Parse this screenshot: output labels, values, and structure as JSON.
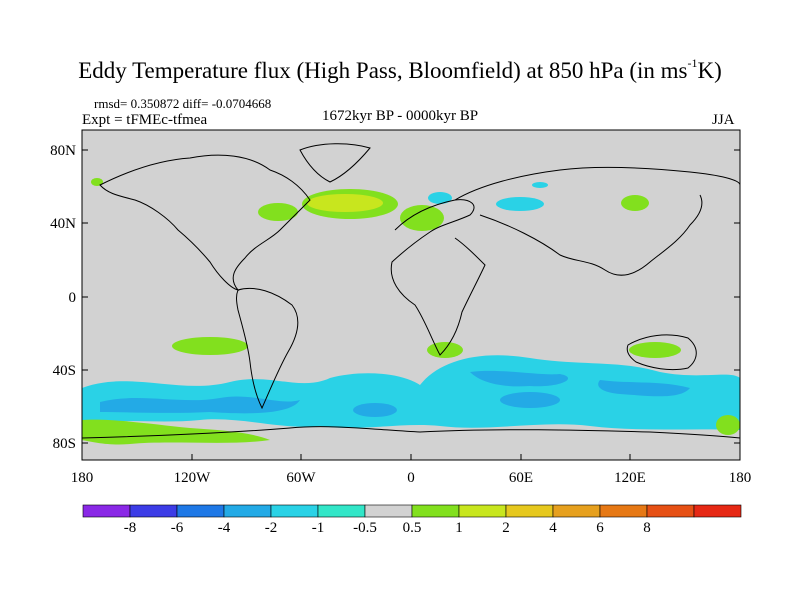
{
  "title": {
    "main": "Eddy Temperature flux (High Pass, Bloomfield) at 850 hPa (in ms",
    "sup": "-1",
    "end": "K)"
  },
  "stats": "rmsd= 0.350872  diff= -0.0704668",
  "expt": "Expt = tFMEc-tfmea",
  "period": "1672kyr BP - 0000kyr BP",
  "season": "JJA",
  "yticks": [
    "80N",
    "40N",
    "0",
    "40S",
    "80S"
  ],
  "xticks": [
    "180",
    "120W",
    "60W",
    "0",
    "60E",
    "120E",
    "180"
  ],
  "colorbar": {
    "colors": [
      "#8a28e6",
      "#3c3ce6",
      "#1e78e6",
      "#23aae6",
      "#2ad2e6",
      "#32e6c8",
      "#d2d2d2",
      "#82e01e",
      "#c8e61e",
      "#e6c81e",
      "#e6a01e",
      "#e67814",
      "#e65014",
      "#e62814"
    ],
    "labels": [
      "-8",
      "-6",
      "-4",
      "-2",
      "-1",
      "-0.5",
      "0.5",
      "1",
      "2",
      "4",
      "6",
      "8"
    ]
  },
  "map_colors": {
    "background": "#d2d2d2",
    "coast": "#000000"
  }
}
